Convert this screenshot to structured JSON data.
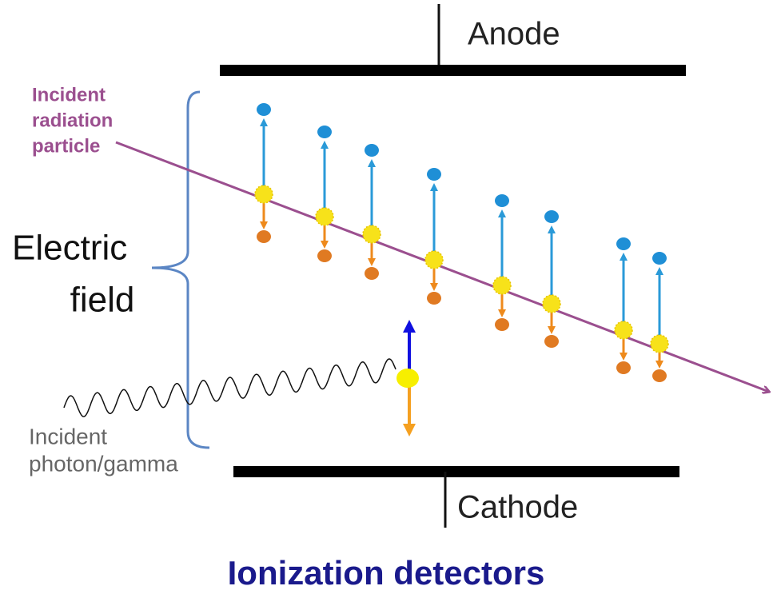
{
  "labels": {
    "anode": "Anode",
    "cathode": "Cathode",
    "incident_particle": [
      "Incident",
      "radiation",
      "particle"
    ],
    "electric_field": [
      "Electric",
      "field"
    ],
    "incident_photon": [
      "Incident",
      "photon/gamma"
    ]
  },
  "caption": "Ionization detectors"
}
